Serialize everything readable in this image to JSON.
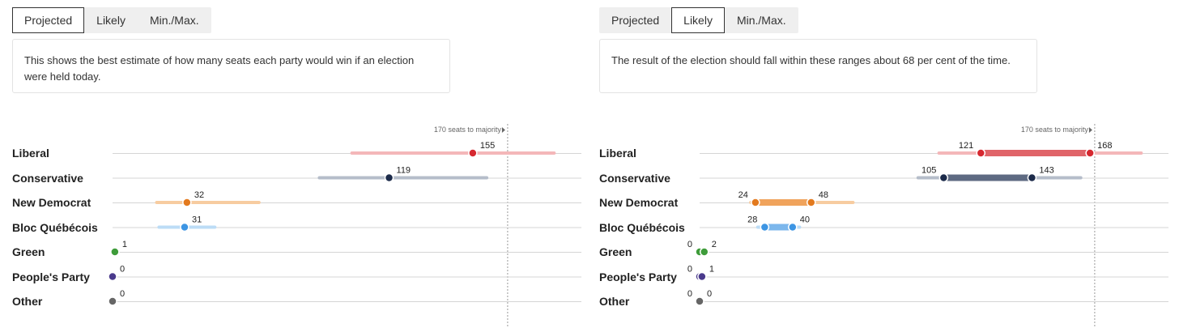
{
  "chart_data": [
    {
      "type": "range-dot",
      "tabs": [
        {
          "label": "Projected",
          "active": true
        },
        {
          "label": "Likely",
          "active": false
        },
        {
          "label": "Min./Max.",
          "active": false
        }
      ],
      "description": "This shows the best estimate of how many seats each party would win if an election were held today.",
      "majority_label": "170 seats to majority",
      "majority_value": 170,
      "xlim": [
        0,
        200
      ],
      "parties": [
        {
          "name": "Liberal",
          "value": 155,
          "range": [
            103,
            190
          ],
          "color": "#d62830",
          "light": "#f4b7b9"
        },
        {
          "name": "Conservative",
          "value": 119,
          "range": [
            89,
            161
          ],
          "color": "#1c2b4a",
          "light": "#b5bdca"
        },
        {
          "name": "New Democrat",
          "value": 32,
          "range": [
            19,
            63
          ],
          "color": "#e37a1e",
          "light": "#f7ccA0"
        },
        {
          "name": "Bloc Québécois",
          "value": 31,
          "range": [
            20,
            44
          ],
          "color": "#3d95e3",
          "light": "#bcdcf6"
        },
        {
          "name": "Green",
          "value": 1,
          "range": null,
          "color": "#3e9c3a",
          "light": "#b9dfb7"
        },
        {
          "name": "People's Party",
          "value": 0,
          "range": null,
          "color": "#4a3a8c",
          "light": "#c6bfe0"
        },
        {
          "name": "Other",
          "value": 0,
          "range": null,
          "color": "#666666",
          "light": "#cccccc"
        }
      ]
    },
    {
      "type": "range-dot",
      "tabs": [
        {
          "label": "Projected",
          "active": false
        },
        {
          "label": "Likely",
          "active": true
        },
        {
          "label": "Min./Max.",
          "active": false
        }
      ],
      "description": "The result of the election should fall within these ranges about 68 per cent of the time.",
      "majority_label": "170 seats to majority",
      "majority_value": 170,
      "xlim": [
        0,
        200
      ],
      "parties": [
        {
          "name": "Liberal",
          "low": 121,
          "high": 168,
          "range": [
            103,
            190
          ],
          "color": "#d62830",
          "mid": "#e06469",
          "light": "#f4b7b9"
        },
        {
          "name": "Conservative",
          "low": 105,
          "high": 143,
          "range": [
            94,
            164
          ],
          "color": "#1c2b4a",
          "mid": "#5e6a82",
          "light": "#b5bdca"
        },
        {
          "name": "New Democrat",
          "low": 24,
          "high": 48,
          "range": [
            22,
            66
          ],
          "color": "#e37a1e",
          "mid": "#f0a35c",
          "light": "#f7cca0"
        },
        {
          "name": "Bloc Québécois",
          "low": 28,
          "high": 40,
          "range": [
            25,
            43
          ],
          "color": "#3d95e3",
          "mid": "#7cb7ec",
          "light": "#bcdcf6"
        },
        {
          "name": "Green",
          "low": 0,
          "high": 2,
          "range": null,
          "color": "#3e9c3a",
          "mid": "#7ec07b",
          "light": "#b9dfb7"
        },
        {
          "name": "People's Party",
          "low": 0,
          "high": 1,
          "range": null,
          "color": "#4a3a8c",
          "mid": "#8577b8",
          "light": "#c6bfe0"
        },
        {
          "name": "Other",
          "low": 0,
          "high": 0,
          "range": null,
          "color": "#666666",
          "mid": "#999999",
          "light": "#cccccc"
        }
      ]
    }
  ]
}
